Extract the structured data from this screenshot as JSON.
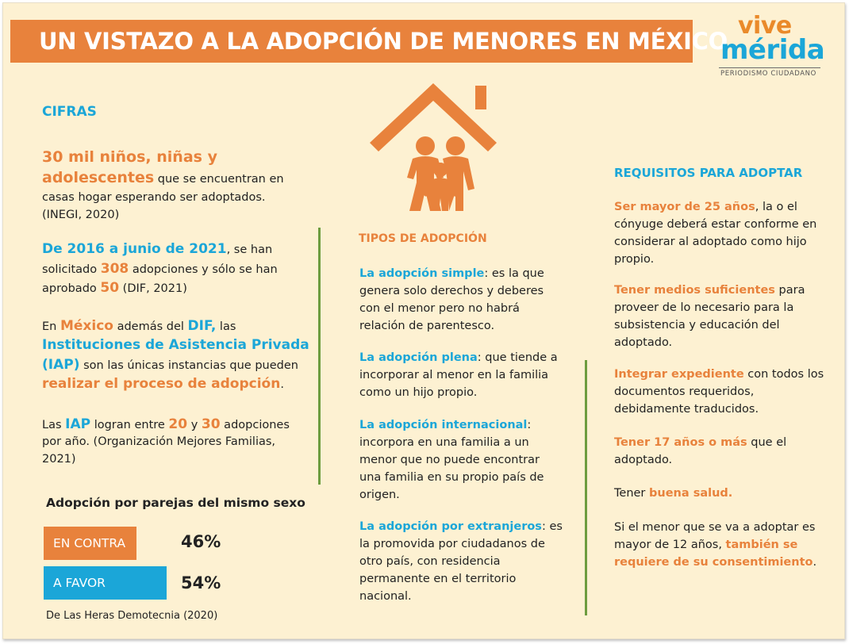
{
  "header": {
    "title": "UN VISTAZO A LA ADOPCIÓN DE MENORES EN MÉXICO"
  },
  "logo": {
    "line1": "vive",
    "line2": "mérida",
    "tagline": "PERIODISMO CIUDADANO"
  },
  "icon": "family-house-icon",
  "colors": {
    "orange": "#e8823c",
    "blue": "#1ba6d8",
    "green": "#6d9c3f",
    "background": "#fdf1d2"
  },
  "cifras": {
    "heading": "CIFRAS",
    "p1": {
      "h1": "30 mil niños, niñas y",
      "h2": "adolescentes",
      "t1": " que se encuentran en",
      "t2": "casas hogar esperando ser adoptados.",
      "t3": "(INEGI, 2020)"
    },
    "p2": {
      "a": "De 2016 a junio de 2021",
      "b": ", se han",
      "c": "solicitado ",
      "d": "308",
      "e": " adopciones y sólo se han",
      "f": "aprobado ",
      "g": "50",
      "h": " (DIF, 2021)"
    },
    "p3": {
      "a": "En ",
      "b": "México",
      "c": " además del ",
      "d": "DIF,",
      "e": " las",
      "f": "Instituciones de Asistencia Privada",
      "g": "(IAP)",
      "h": " son las únicas instancias que pueden",
      "i": "realizar el proceso de adopción",
      "j": "."
    },
    "p4": {
      "a": "Las ",
      "b": "IAP",
      "c": " logran entre ",
      "d": "20",
      "e": " y ",
      "f": "30",
      "g": " adopciones",
      "h": "por año. (Organización Mejores Familias,",
      "i": "2021)"
    }
  },
  "poll": {
    "title": "Adopción por parejas del mismo sexo",
    "against_label": "EN CONTRA",
    "against_pct": "46%",
    "favor_label": "A FAVOR",
    "favor_pct": "54%",
    "against_value": 46,
    "favor_value": 54,
    "source": "De Las Heras Demotecnia (2020)"
  },
  "tipos": {
    "heading": "TIPOS DE ADOPCIÓN",
    "i1": {
      "title": "La adopción simple",
      "a": ": es la que",
      "l2": "genera solo derechos y deberes",
      "l3": "con el menor pero no habrá",
      "l4": "relación de parentesco."
    },
    "i2": {
      "title": "La adopción plena",
      "a": ": que tiende a",
      "l2": "incorporar al menor en la familia",
      "l3": "como un hijo propio."
    },
    "i3": {
      "title": "La adopción internacional",
      "a": ":",
      "l2": "incorpora en una familia a un",
      "l3": "menor que no puede encontrar",
      "l4": "una familia en su propio país de",
      "l5": "origen."
    },
    "i4": {
      "title": "La adopción por extranjeros",
      "a": ": es",
      "l2": "la promovida por ciudadanos de",
      "l3": "otro país, con residencia",
      "l4": "permanente en el territorio",
      "l5": "nacional."
    }
  },
  "requisitos": {
    "heading": "REQUISITOS PARA ADOPTAR",
    "r1": {
      "hl": "Ser mayor de 25 años",
      "a": ", la o el",
      "l2": "cónyuge deberá estar conforme en",
      "l3": "considerar al adoptado como hijo",
      "l4": "propio."
    },
    "r2": {
      "hl": "Tener medios suficientes",
      "a": " para",
      "l2": "proveer de lo necesario para la",
      "l3": "subsistencia y educación del",
      "l4": "adoptado."
    },
    "r3": {
      "hl": "Integrar expediente",
      "a": " con todos los",
      "l2": "documentos requeridos,",
      "l3": "debidamente traducidos."
    },
    "r4": {
      "hl": "Tener 17 años o más",
      "a": " que el",
      "l2": "adoptado."
    },
    "r5": {
      "a": "Tener ",
      "hl": "buena salud."
    },
    "r6": {
      "l1": "Si el menor que se va a adoptar es",
      "l2a": "mayor de 12 años, ",
      "hl1": "también se",
      "hl2": "requiere de su consentimiento",
      "end": "."
    }
  }
}
